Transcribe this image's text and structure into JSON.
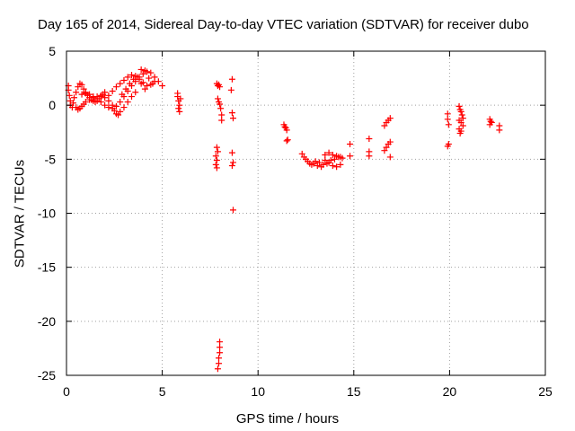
{
  "chart_data": {
    "type": "scatter",
    "title": "Day 165 of 2014, Sidereal Day-to-day VTEC variation (SDTVAR) for receiver dubo",
    "xlabel": "GPS time / hours",
    "ylabel": "SDTVAR / TECUs",
    "xlim": [
      0,
      25
    ],
    "ylim": [
      -25,
      5
    ],
    "xticks": [
      0,
      5,
      10,
      15,
      20,
      25
    ],
    "yticks": [
      -25,
      -20,
      -15,
      -10,
      -5,
      0,
      5
    ],
    "grid": true,
    "marker": "+",
    "color": "#ff0000",
    "series": [
      {
        "name": "SDTVAR",
        "points": [
          [
            0.1,
            1.8
          ],
          [
            0.1,
            1.4
          ],
          [
            0.15,
            0.9
          ],
          [
            0.2,
            0.4
          ],
          [
            0.2,
            0.0
          ],
          [
            0.3,
            -0.2
          ],
          [
            0.35,
            0.2
          ],
          [
            0.4,
            0.7
          ],
          [
            0.5,
            1.2
          ],
          [
            0.6,
            1.7
          ],
          [
            0.7,
            2.0
          ],
          [
            0.8,
            1.9
          ],
          [
            0.9,
            1.5
          ],
          [
            1.0,
            1.2
          ],
          [
            1.1,
            0.9
          ],
          [
            1.2,
            0.7
          ],
          [
            1.3,
            0.5
          ],
          [
            1.4,
            0.4
          ],
          [
            1.5,
            0.3
          ],
          [
            1.6,
            0.4
          ],
          [
            1.7,
            0.6
          ],
          [
            1.8,
            0.8
          ],
          [
            1.9,
            1.0
          ],
          [
            2.0,
            1.2
          ],
          [
            0.5,
            -0.2
          ],
          [
            0.6,
            -0.4
          ],
          [
            0.7,
            -0.3
          ],
          [
            0.8,
            -0.1
          ],
          [
            0.9,
            0.1
          ],
          [
            1.0,
            0.3
          ],
          [
            1.2,
            0.5
          ],
          [
            1.4,
            0.7
          ],
          [
            1.6,
            0.8
          ],
          [
            1.8,
            0.9
          ],
          [
            2.0,
            0.7
          ],
          [
            2.2,
            0.4
          ],
          [
            2.4,
            0.0
          ],
          [
            2.5,
            -0.5
          ],
          [
            2.6,
            -0.8
          ],
          [
            2.7,
            -0.9
          ],
          [
            2.8,
            -0.6
          ],
          [
            3.0,
            -0.2
          ],
          [
            3.2,
            0.3
          ],
          [
            3.4,
            0.8
          ],
          [
            3.6,
            1.2
          ],
          [
            0.8,
            1.0
          ],
          [
            1.0,
            1.1
          ],
          [
            1.2,
            1.0
          ],
          [
            1.4,
            0.8
          ],
          [
            1.6,
            0.6
          ],
          [
            1.8,
            0.3
          ],
          [
            2.0,
            0.0
          ],
          [
            2.2,
            -0.2
          ],
          [
            2.4,
            -0.3
          ],
          [
            2.6,
            -0.1
          ],
          [
            2.8,
            0.3
          ],
          [
            3.0,
            0.8
          ],
          [
            3.2,
            1.3
          ],
          [
            3.4,
            1.8
          ],
          [
            3.6,
            2.2
          ],
          [
            3.8,
            2.6
          ],
          [
            4.0,
            2.9
          ],
          [
            4.2,
            3.1
          ],
          [
            4.4,
            3.0
          ],
          [
            4.6,
            2.6
          ],
          [
            4.8,
            2.2
          ],
          [
            5.0,
            1.8
          ],
          [
            2.2,
            0.9
          ],
          [
            2.4,
            1.3
          ],
          [
            2.6,
            1.7
          ],
          [
            2.8,
            2.0
          ],
          [
            3.0,
            2.3
          ],
          [
            3.2,
            2.6
          ],
          [
            3.4,
            2.8
          ],
          [
            3.6,
            2.7
          ],
          [
            3.8,
            2.4
          ],
          [
            4.0,
            2.1
          ],
          [
            4.2,
            1.8
          ],
          [
            4.4,
            1.9
          ],
          [
            4.6,
            2.2
          ],
          [
            3.9,
            3.3
          ],
          [
            4.1,
            3.2
          ],
          [
            4.3,
            2.5
          ],
          [
            4.5,
            2.0
          ],
          [
            2.9,
            1.0
          ],
          [
            3.1,
            1.5
          ],
          [
            3.3,
            2.0
          ],
          [
            3.5,
            2.4
          ],
          [
            3.7,
            2.6
          ],
          [
            3.9,
            2.0
          ],
          [
            4.1,
            1.5
          ],
          [
            5.8,
            1.1
          ],
          [
            5.8,
            0.8
          ],
          [
            5.85,
            0.4
          ],
          [
            5.9,
            0.0
          ],
          [
            5.85,
            -0.3
          ],
          [
            5.9,
            -0.6
          ],
          [
            5.95,
            0.6
          ],
          [
            7.85,
            2.0
          ],
          [
            7.9,
            1.8
          ],
          [
            7.95,
            1.9
          ],
          [
            8.0,
            1.7
          ],
          [
            7.9,
            0.6
          ],
          [
            7.95,
            0.3
          ],
          [
            8.0,
            0.1
          ],
          [
            8.05,
            -0.3
          ],
          [
            8.1,
            -0.9
          ],
          [
            8.1,
            -1.4
          ],
          [
            7.85,
            -3.9
          ],
          [
            7.9,
            -4.3
          ],
          [
            7.8,
            -4.7
          ],
          [
            7.85,
            -5.1
          ],
          [
            7.8,
            -5.5
          ],
          [
            7.85,
            -5.8
          ],
          [
            8.0,
            -21.9
          ],
          [
            8.0,
            -22.4
          ],
          [
            8.0,
            -22.9
          ],
          [
            7.95,
            -23.4
          ],
          [
            7.95,
            -23.9
          ],
          [
            7.9,
            -24.4
          ],
          [
            8.65,
            2.4
          ],
          [
            8.6,
            1.4
          ],
          [
            8.65,
            -0.7
          ],
          [
            8.7,
            -1.2
          ],
          [
            8.65,
            -4.4
          ],
          [
            8.7,
            -5.3
          ],
          [
            8.65,
            -5.6
          ],
          [
            8.7,
            -9.7
          ],
          [
            11.35,
            -1.8
          ],
          [
            11.4,
            -2.0
          ],
          [
            11.45,
            -2.1
          ],
          [
            11.5,
            -2.3
          ],
          [
            11.55,
            -3.2
          ],
          [
            11.5,
            -3.3
          ],
          [
            12.3,
            -4.5
          ],
          [
            12.4,
            -4.8
          ],
          [
            12.5,
            -5.0
          ],
          [
            12.6,
            -5.2
          ],
          [
            12.7,
            -5.4
          ],
          [
            12.8,
            -5.5
          ],
          [
            12.9,
            -5.4
          ],
          [
            13.0,
            -5.2
          ],
          [
            13.2,
            -5.3
          ],
          [
            13.4,
            -5.5
          ],
          [
            13.6,
            -5.4
          ],
          [
            13.8,
            -5.1
          ],
          [
            14.0,
            -5.0
          ],
          [
            14.2,
            -4.8
          ],
          [
            14.4,
            -4.9
          ],
          [
            13.5,
            -4.6
          ],
          [
            13.7,
            -4.4
          ],
          [
            13.9,
            -4.6
          ],
          [
            14.1,
            -4.7
          ],
          [
            14.3,
            -4.8
          ],
          [
            13.1,
            -5.6
          ],
          [
            13.3,
            -5.7
          ],
          [
            13.5,
            -5.1
          ],
          [
            13.7,
            -5.3
          ],
          [
            13.9,
            -5.6
          ],
          [
            14.1,
            -5.7
          ],
          [
            14.3,
            -5.5
          ],
          [
            14.8,
            -3.6
          ],
          [
            14.8,
            -4.7
          ],
          [
            15.8,
            -3.1
          ],
          [
            15.8,
            -4.3
          ],
          [
            15.8,
            -4.7
          ],
          [
            16.6,
            -1.9
          ],
          [
            16.7,
            -1.6
          ],
          [
            16.8,
            -1.4
          ],
          [
            16.9,
            -1.2
          ],
          [
            16.6,
            -4.2
          ],
          [
            16.7,
            -3.9
          ],
          [
            16.8,
            -3.6
          ],
          [
            16.9,
            -3.4
          ],
          [
            16.9,
            -4.8
          ],
          [
            19.9,
            -0.8
          ],
          [
            19.9,
            -1.3
          ],
          [
            19.95,
            -1.8
          ],
          [
            19.95,
            -3.6
          ],
          [
            19.9,
            -3.8
          ],
          [
            20.5,
            -0.1
          ],
          [
            20.55,
            -0.4
          ],
          [
            20.6,
            -0.6
          ],
          [
            20.65,
            -0.9
          ],
          [
            20.5,
            -1.4
          ],
          [
            20.6,
            -1.6
          ],
          [
            20.7,
            -1.9
          ],
          [
            20.5,
            -2.2
          ],
          [
            20.6,
            -2.4
          ],
          [
            20.55,
            -2.6
          ],
          [
            20.7,
            -1.2
          ],
          [
            22.1,
            -1.3
          ],
          [
            22.15,
            -1.5
          ],
          [
            22.1,
            -1.8
          ],
          [
            22.2,
            -1.6
          ],
          [
            22.6,
            -1.9
          ],
          [
            22.6,
            -2.3
          ]
        ]
      }
    ]
  }
}
